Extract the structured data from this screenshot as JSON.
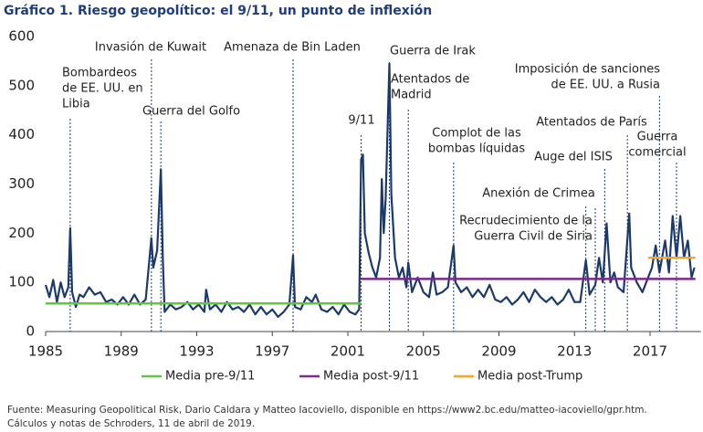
{
  "chart_data": {
    "type": "line",
    "title": "Gráfico 1. Riesgo geopolítico: el 9/11, un punto de inflexión",
    "source": [
      "Fuente: Measuring Geopolitical Risk, Dario Caldara y Matteo Iacoviello, disponible en https://www2.bc.edu/matteo-iacoviello/gpr.htm.",
      "Cálculos y notas de Schroders, 11 de abril de 2019."
    ],
    "xlim": [
      1985,
      2019.5
    ],
    "xticks": [
      1985,
      1989,
      1993,
      1997,
      2001,
      2005,
      2009,
      2013,
      2017
    ],
    "ylim": [
      0,
      600
    ],
    "yticks": [
      0,
      100,
      200,
      300,
      400,
      500,
      600
    ],
    "grid": false,
    "series": [
      {
        "color": "#1b3a6b",
        "x": [
          1985.0,
          1985.2,
          1985.4,
          1985.6,
          1985.8,
          1986.0,
          1986.2,
          1986.3,
          1986.4,
          1986.6,
          1986.8,
          1987.0,
          1987.3,
          1987.6,
          1987.9,
          1988.2,
          1988.5,
          1988.8,
          1989.1,
          1989.4,
          1989.7,
          1990.0,
          1990.3,
          1990.6,
          1990.7,
          1990.9,
          1991.1,
          1991.2,
          1991.3,
          1991.6,
          1991.9,
          1992.2,
          1992.5,
          1992.8,
          1993.1,
          1993.4,
          1993.5,
          1993.7,
          1994.0,
          1994.3,
          1994.6,
          1994.9,
          1995.2,
          1995.5,
          1995.8,
          1996.1,
          1996.4,
          1996.7,
          1997.0,
          1997.3,
          1997.6,
          1997.9,
          1998.1,
          1998.2,
          1998.5,
          1998.8,
          1999.1,
          1999.3,
          1999.6,
          1999.9,
          2000.2,
          2000.5,
          2000.8,
          2001.1,
          2001.4,
          2001.6,
          2001.7,
          2001.8,
          2001.9,
          2002.1,
          2002.3,
          2002.5,
          2002.7,
          2002.8,
          2002.9,
          2003.0,
          2003.2,
          2003.3,
          2003.5,
          2003.7,
          2003.9,
          2004.1,
          2004.2,
          2004.4,
          2004.7,
          2005.0,
          2005.3,
          2005.5,
          2005.7,
          2006.0,
          2006.3,
          2006.6,
          2006.7,
          2007.0,
          2007.3,
          2007.6,
          2007.9,
          2008.2,
          2008.5,
          2008.8,
          2009.1,
          2009.4,
          2009.7,
          2010.0,
          2010.3,
          2010.6,
          2010.9,
          2011.2,
          2011.5,
          2011.8,
          2012.1,
          2012.4,
          2012.7,
          2013.0,
          2013.3,
          2013.6,
          2013.8,
          2014.1,
          2014.3,
          2014.5,
          2014.7,
          2014.9,
          2015.1,
          2015.3,
          2015.6,
          2015.9,
          2016.0,
          2016.3,
          2016.6,
          2016.9,
          2017.1,
          2017.3,
          2017.5,
          2017.8,
          2018.0,
          2018.2,
          2018.4,
          2018.6,
          2018.8,
          2019.0,
          2019.2,
          2019.35
        ],
        "values": [
          95,
          70,
          105,
          60,
          100,
          70,
          90,
          210,
          80,
          50,
          75,
          70,
          90,
          75,
          80,
          60,
          65,
          55,
          70,
          55,
          75,
          55,
          65,
          190,
          130,
          165,
          330,
          150,
          40,
          55,
          45,
          50,
          60,
          45,
          55,
          40,
          85,
          45,
          55,
          40,
          60,
          45,
          50,
          40,
          55,
          35,
          50,
          35,
          45,
          30,
          40,
          55,
          155,
          50,
          45,
          70,
          60,
          75,
          45,
          40,
          50,
          35,
          55,
          40,
          35,
          45,
          350,
          360,
          200,
          160,
          130,
          110,
          150,
          310,
          200,
          270,
          545,
          280,
          150,
          110,
          130,
          90,
          140,
          80,
          110,
          80,
          70,
          120,
          75,
          80,
          90,
          175,
          100,
          80,
          90,
          70,
          85,
          70,
          95,
          65,
          60,
          70,
          55,
          65,
          80,
          60,
          85,
          70,
          60,
          70,
          55,
          65,
          85,
          60,
          60,
          145,
          75,
          95,
          150,
          100,
          220,
          100,
          120,
          90,
          80,
          240,
          130,
          100,
          80,
          110,
          130,
          175,
          120,
          185,
          120,
          235,
          150,
          235,
          150,
          185,
          110,
          130
        ]
      },
      {
        "name": "Media pre-9/11",
        "color": "#5cc83a",
        "x": [
          1985,
          2001.7
        ],
        "values": [
          57,
          57
        ]
      },
      {
        "name": "Media post-9/11",
        "color": "#7a2a8c",
        "x": [
          2001.7,
          2019.4
        ],
        "values": [
          107,
          107
        ]
      },
      {
        "name": "Media post-Trump",
        "color": "#f5a623",
        "x": [
          2016.9,
          2019.4
        ],
        "values": [
          150,
          150
        ]
      }
    ],
    "annotations": [
      {
        "x": 1986.3,
        "lines": [
          "Bombardeos",
          "de EE. UU. en",
          "Libia"
        ]
      },
      {
        "x": 1990.6,
        "lines": [
          "Invasión de Kuwait"
        ]
      },
      {
        "x": 1991.1,
        "lines": [
          "Guerra del Golfo"
        ]
      },
      {
        "x": 1998.1,
        "lines": [
          "Amenaza de Bin Laden"
        ]
      },
      {
        "x": 2001.7,
        "lines": [
          "9/11"
        ]
      },
      {
        "x": 2003.2,
        "lines": [
          "Guerra de Irak"
        ]
      },
      {
        "x": 2004.2,
        "lines": [
          "Atentados de",
          "Madrid"
        ]
      },
      {
        "x": 2006.6,
        "lines": [
          "Complot de las",
          "bombas líquidas"
        ]
      },
      {
        "x": 2013.6,
        "lines": [
          "Anexión de Crimea"
        ]
      },
      {
        "x": 2014.1,
        "lines": [
          "Recrudecimiento de la",
          "Guerra Civil de Siria"
        ]
      },
      {
        "x": 2014.6,
        "lines": [
          "Auge del ISIS"
        ]
      },
      {
        "x": 2015.8,
        "lines": [
          "Atentados de París"
        ]
      },
      {
        "x": 2017.5,
        "lines": [
          "Imposición de sanciones",
          "de EE. UU. a Rusia"
        ]
      },
      {
        "x": 2018.4,
        "lines": [
          "Guerra",
          "comercial"
        ]
      }
    ]
  }
}
